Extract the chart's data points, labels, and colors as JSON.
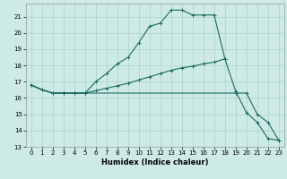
{
  "xlabel": "Humidex (Indice chaleur)",
  "bg_color": "#ceeae6",
  "grid_color": "#aad4ce",
  "line_color": "#1a6b5e",
  "xlim": [
    -0.5,
    23.5
  ],
  "ylim": [
    13,
    21.8
  ],
  "xticks": [
    0,
    1,
    2,
    3,
    4,
    5,
    6,
    7,
    8,
    9,
    10,
    11,
    12,
    13,
    14,
    15,
    16,
    17,
    18,
    19,
    20,
    21,
    22,
    23
  ],
  "yticks": [
    13,
    14,
    15,
    16,
    17,
    18,
    19,
    20,
    21
  ],
  "line1_x": [
    0,
    1,
    2,
    3,
    4,
    5,
    6,
    7,
    8,
    9,
    10,
    11,
    12,
    13,
    14,
    15,
    16,
    17,
    18
  ],
  "line1_y": [
    16.8,
    16.5,
    16.3,
    16.3,
    16.3,
    16.3,
    17.0,
    17.5,
    18.1,
    18.5,
    19.4,
    20.4,
    20.6,
    21.4,
    21.4,
    21.1,
    21.1,
    21.1,
    18.4
  ],
  "line2_x": [
    0,
    1,
    2,
    3,
    4,
    5,
    6,
    7,
    8,
    9,
    10,
    11,
    12,
    13,
    14,
    15,
    16,
    17,
    18,
    19,
    20,
    21,
    22,
    23
  ],
  "line2_y": [
    16.8,
    16.5,
    16.3,
    16.3,
    16.3,
    16.3,
    16.45,
    16.6,
    16.75,
    16.9,
    17.1,
    17.3,
    17.5,
    17.7,
    17.85,
    17.95,
    18.1,
    18.2,
    18.4,
    16.4,
    15.1,
    14.5,
    13.5,
    13.4
  ],
  "line3_x": [
    0,
    1,
    2,
    3,
    4,
    5,
    19,
    20,
    21,
    22,
    23
  ],
  "line3_y": [
    16.8,
    16.5,
    16.3,
    16.3,
    16.3,
    16.3,
    16.3,
    16.3,
    15.0,
    14.5,
    13.4
  ]
}
